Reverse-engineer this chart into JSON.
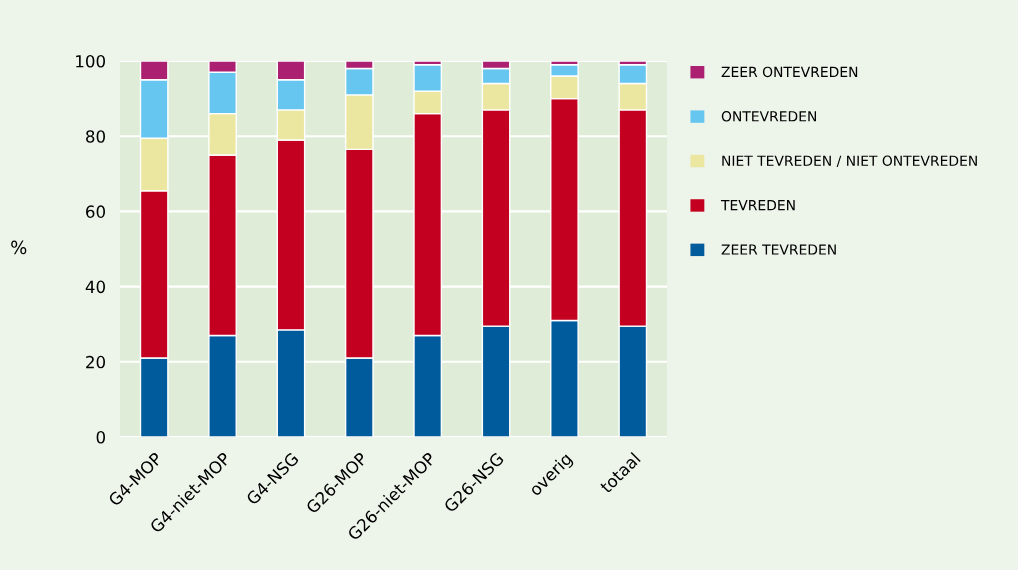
{
  "chart_data": {
    "type": "bar",
    "stacked": true,
    "ylabel": "%",
    "categories": [
      "G4-MOP",
      "G4-niet-MOP",
      "G4-NSG",
      "G26-MOP",
      "G26-niet-MOP",
      "G26-NSG",
      "overig",
      "totaal"
    ],
    "series": [
      {
        "name": "ZEER TEVREDEN",
        "color": "#005b9c",
        "values": [
          21,
          27,
          28.5,
          21,
          27,
          29.5,
          31,
          29.5
        ]
      },
      {
        "name": "TEVREDEN",
        "color": "#c3001f",
        "values": [
          44.5,
          48,
          50.5,
          55.5,
          59,
          57.5,
          59,
          57.5
        ]
      },
      {
        "name": "NIET TEVREDEN / NIET ONTEVREDEN",
        "color": "#ebe6a0",
        "values": [
          14,
          11,
          8,
          14.5,
          6,
          7,
          6,
          7
        ]
      },
      {
        "name": "ONTEVREDEN",
        "color": "#66c6f0",
        "values": [
          15.5,
          11,
          8,
          7,
          7,
          4,
          3,
          5
        ]
      },
      {
        "name": "ZEER ONTEVREDEN",
        "color": "#ac2072",
        "values": [
          5,
          3,
          5,
          2,
          1,
          2,
          1,
          1
        ]
      }
    ],
    "ylim": [
      0,
      100
    ],
    "yticks": [
      0,
      20,
      40,
      60,
      80,
      100
    ],
    "grid": "y",
    "legend": "right"
  }
}
